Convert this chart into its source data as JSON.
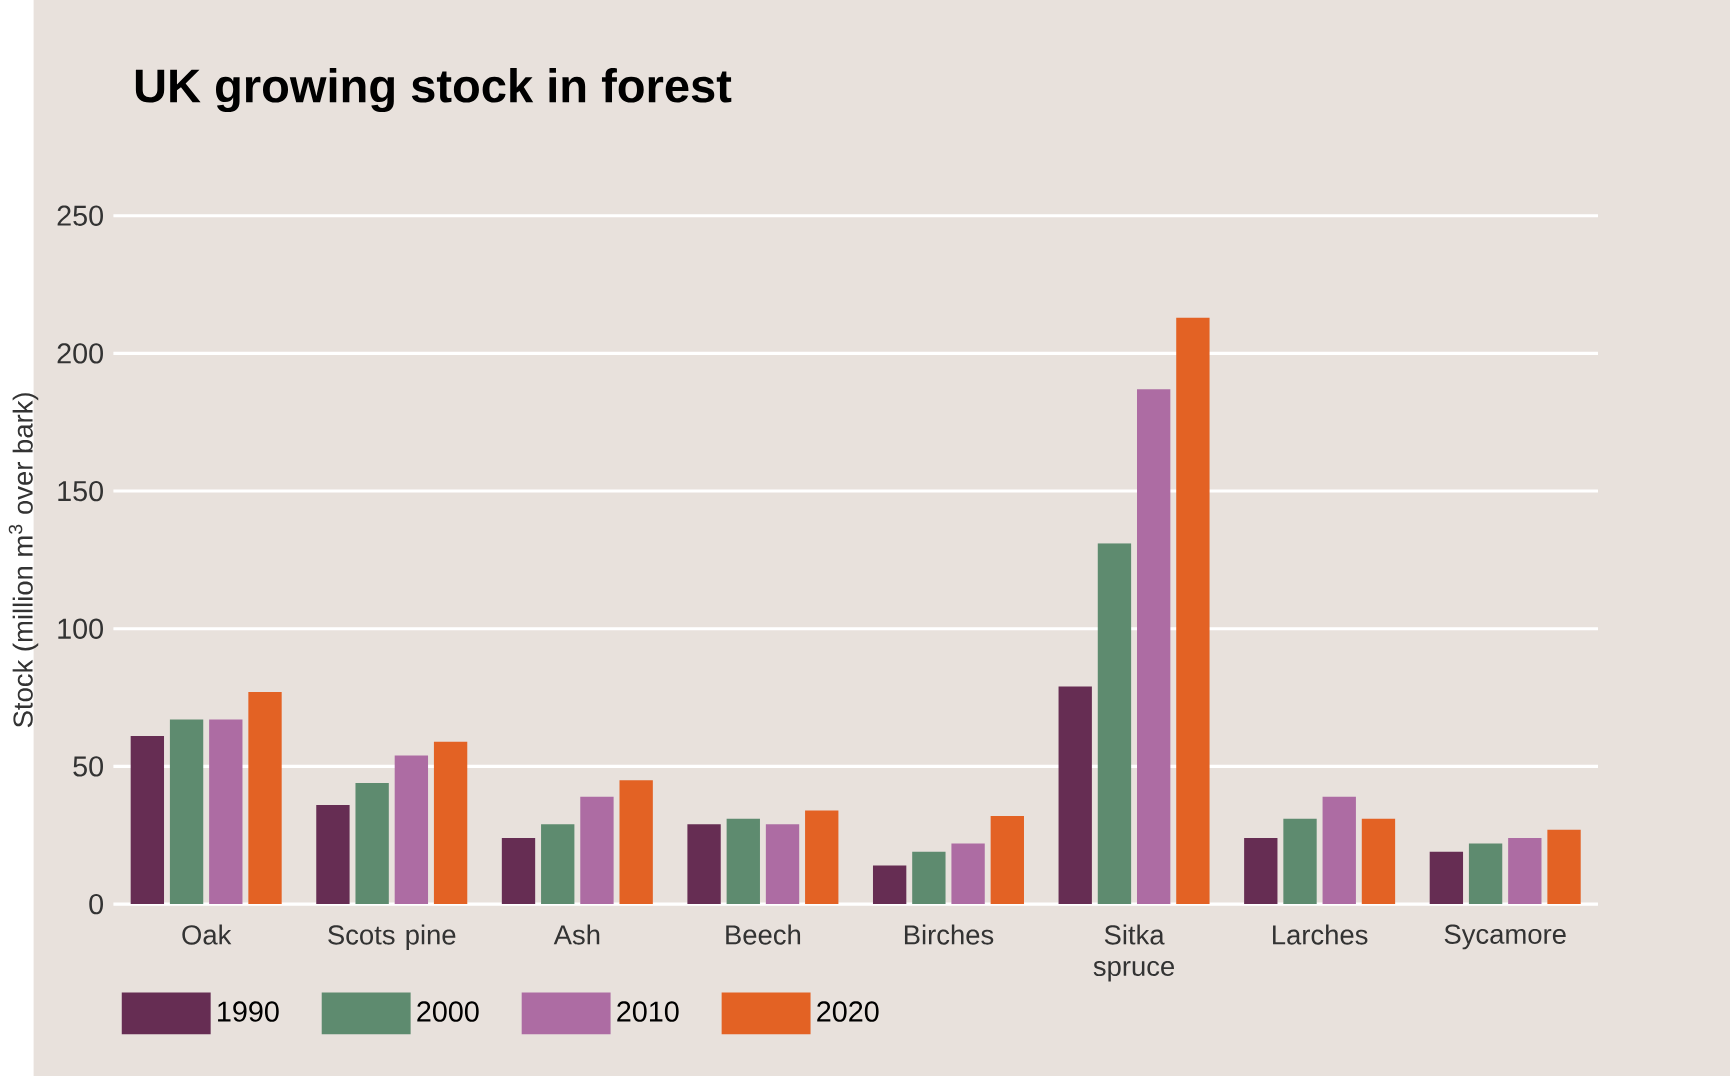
{
  "chart_data": {
    "type": "bar",
    "title": "UK growing stock in forest",
    "ylabel": "Stock (million m$^{3}$ over bark)",
    "categories": [
      "Oak",
      "Scots pine",
      "Ash",
      "Beech",
      "Birches",
      "Sitka spruce",
      "Larches",
      "Sycamore"
    ],
    "series": [
      {
        "name": "1990",
        "color": "#662d53",
        "values": [
          61,
          36,
          24,
          29,
          14,
          79,
          24,
          19
        ]
      },
      {
        "name": "2000",
        "color": "#5e8b6f",
        "values": [
          67,
          44,
          29,
          31,
          19,
          131,
          31,
          22
        ]
      },
      {
        "name": "2010",
        "color": "#ad6ca3",
        "values": [
          67,
          54,
          39,
          29,
          22,
          187,
          39,
          24
        ]
      },
      {
        "name": "2020",
        "color": "#e36224",
        "values": [
          77,
          59,
          45,
          34,
          32,
          213,
          31,
          27
        ]
      }
    ],
    "ylim": [
      0,
      250
    ],
    "yticks": [
      0,
      50,
      100,
      150,
      200,
      250
    ],
    "grid": "y",
    "legend": "bottom left"
  }
}
